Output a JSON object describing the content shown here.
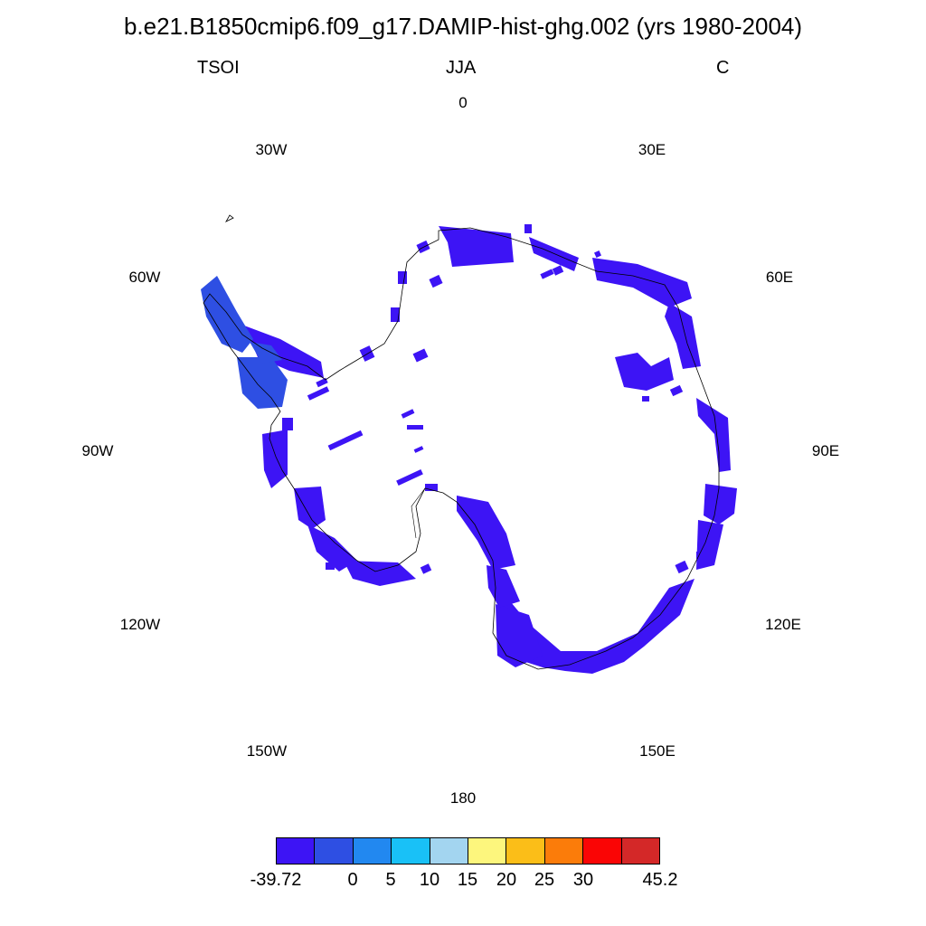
{
  "title": "b.e21.B1850cmip6.f09_g17.DAMIP-hist-ghg.002 (yrs 1980-2004)",
  "left_string": "TSOI",
  "center_string": "JJA",
  "right_string": "C",
  "longitude_labels": {
    "lon_0": "0",
    "lon_30e": "30E",
    "lon_60e": "60E",
    "lon_90e": "90E",
    "lon_120e": "120E",
    "lon_150e": "150E",
    "lon_180": "180",
    "lon_150w": "150W",
    "lon_120w": "120W",
    "lon_90w": "90W",
    "lon_60w": "60W",
    "lon_30w": "30W"
  },
  "colorbar": {
    "colors": [
      "#3d14f5",
      "#2e4fe3",
      "#2288f0",
      "#19c1f7",
      "#a3d5f0",
      "#fdf67d",
      "#fbbe18",
      "#fb7c0a",
      "#fa0505",
      "#d42828"
    ],
    "labels": {
      "min": "-39.72",
      "l0": "0",
      "l5": "5",
      "l10": "10",
      "l15": "15",
      "l20": "20",
      "l25": "25",
      "l30": "30",
      "max": "45.2"
    }
  },
  "map": {
    "projection": "south-polar-stereographic",
    "field_colors": {
      "dominant": "#3d14f5",
      "peninsula": "#2e4fe3"
    },
    "coastline_color": "#000000"
  }
}
